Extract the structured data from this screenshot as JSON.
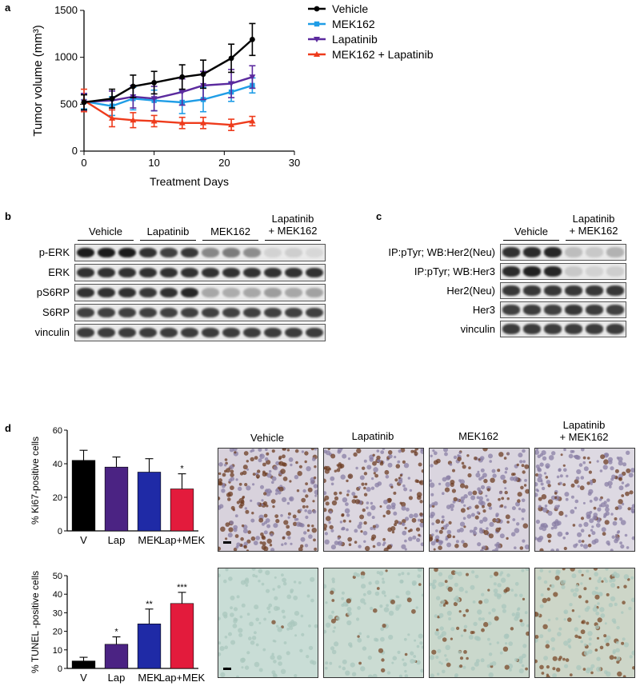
{
  "panels": {
    "a": {
      "label": "a",
      "chart_data": {
        "type": "line",
        "xlabel": "Treatment Days",
        "ylabel": "Tumor  volume (mm³)",
        "xlim": [
          0,
          30
        ],
        "ylim": [
          0,
          1500
        ],
        "xticks": [
          0,
          10,
          20,
          30
        ],
        "yticks": [
          0,
          500,
          1000,
          1500
        ],
        "legend_position": "top-right",
        "series": [
          {
            "name": "Vehicle",
            "color": "#000000",
            "marker": "circle",
            "x": [
              0,
              4,
              7,
              10,
              14,
              17,
              21,
              24
            ],
            "y": [
              520,
              560,
              690,
              730,
              790,
              820,
              990,
              1190
            ],
            "err": [
              80,
              100,
              120,
              120,
              130,
              150,
              150,
              170
            ]
          },
          {
            "name": "MEK162",
            "color": "#1f9de6",
            "marker": "square",
            "x": [
              0,
              4,
              7,
              10,
              14,
              17,
              21,
              24
            ],
            "y": [
              530,
              480,
              560,
              540,
              520,
              550,
              630,
              700
            ],
            "err": [
              80,
              100,
              120,
              110,
              120,
              130,
              100,
              80
            ]
          },
          {
            "name": "Lapatinib",
            "color": "#5b2a9e",
            "marker": "triangle-down",
            "x": [
              0,
              4,
              7,
              10,
              14,
              17,
              21,
              24
            ],
            "y": [
              525,
              540,
              580,
              560,
              630,
              700,
              720,
              790
            ],
            "err": [
              90,
              100,
              120,
              130,
              140,
              150,
              150,
              120
            ]
          },
          {
            "name": "MEK162 + Lapatinib",
            "color": "#ee3b1c",
            "marker": "triangle-up",
            "x": [
              0,
              4,
              7,
              10,
              14,
              17,
              21,
              24
            ],
            "y": [
              540,
              350,
              330,
              320,
              300,
              300,
              280,
              320
            ],
            "err": [
              120,
              90,
              80,
              60,
              60,
              60,
              60,
              50
            ]
          }
        ]
      }
    },
    "b": {
      "label": "b",
      "groups": [
        "Vehicle",
        "Lapatinib",
        "MEK162",
        "Lapatinib\n+ MEK162"
      ],
      "rows": [
        {
          "name": "p-ERK",
          "intensity": [
            0.95,
            0.95,
            0.95,
            0.85,
            0.78,
            0.82,
            0.45,
            0.5,
            0.42,
            0.1,
            0.12,
            0.08
          ]
        },
        {
          "name": "ERK",
          "intensity": [
            0.85,
            0.85,
            0.85,
            0.85,
            0.85,
            0.85,
            0.85,
            0.85,
            0.85,
            0.85,
            0.85,
            0.85
          ]
        },
        {
          "name": "pS6RP",
          "intensity": [
            0.85,
            0.85,
            0.85,
            0.82,
            0.85,
            0.9,
            0.3,
            0.28,
            0.3,
            0.35,
            0.3,
            0.32
          ]
        },
        {
          "name": "S6RP",
          "intensity": [
            0.78,
            0.78,
            0.78,
            0.78,
            0.78,
            0.78,
            0.78,
            0.78,
            0.78,
            0.78,
            0.78,
            0.78
          ]
        },
        {
          "name": "vinculin",
          "intensity": [
            0.8,
            0.8,
            0.8,
            0.8,
            0.8,
            0.8,
            0.8,
            0.8,
            0.8,
            0.8,
            0.8,
            0.8
          ]
        }
      ]
    },
    "c": {
      "label": "c",
      "groups": [
        "Vehicle",
        "Lapatinib\n+ MEK162"
      ],
      "rows": [
        {
          "name": "IP:pTyr; WB:Her2(Neu)",
          "intensity": [
            0.85,
            0.88,
            0.9,
            0.2,
            0.15,
            0.25
          ]
        },
        {
          "name": "IP:pTyr; WB:Her3",
          "intensity": [
            0.88,
            0.92,
            0.9,
            0.15,
            0.1,
            0.12
          ]
        },
        {
          "name": "Her2(Neu)",
          "intensity": [
            0.82,
            0.82,
            0.82,
            0.82,
            0.82,
            0.82
          ]
        },
        {
          "name": "Her3",
          "intensity": [
            0.78,
            0.8,
            0.78,
            0.82,
            0.8,
            0.78
          ]
        },
        {
          "name": "vinculin",
          "intensity": [
            0.8,
            0.8,
            0.8,
            0.8,
            0.8,
            0.8
          ]
        }
      ]
    },
    "d": {
      "label": "d",
      "ki67_chart": {
        "type": "bar",
        "ylabel": "% Ki67-positive cells",
        "categories": [
          "V",
          "Lap",
          "MEK",
          "Lap+MEK"
        ],
        "values": [
          42,
          38,
          35,
          25
        ],
        "err": [
          6,
          6,
          8,
          9
        ],
        "sig": [
          "",
          "",
          "",
          "*"
        ],
        "colors": [
          "#000000",
          "#4b2383",
          "#1f2aa6",
          "#e31b3c"
        ],
        "ylim": [
          0,
          60
        ],
        "yticks": [
          0,
          20,
          40,
          60
        ]
      },
      "tunel_chart": {
        "type": "bar",
        "ylabel": "% TUNEL -positive cells",
        "categories": [
          "V",
          "Lap",
          "MEK",
          "Lap+MEK"
        ],
        "values": [
          4,
          13,
          24,
          35
        ],
        "err": [
          2,
          4,
          8,
          6
        ],
        "sig": [
          "",
          "*",
          "**",
          "***"
        ],
        "colors": [
          "#000000",
          "#4b2383",
          "#1f2aa6",
          "#e31b3c"
        ],
        "ylim": [
          0,
          50
        ],
        "yticks": [
          0,
          10,
          20,
          30,
          40,
          50
        ]
      },
      "ihc_headers": [
        "Vehicle",
        "Lapatinib",
        "MEK162",
        "Lapatinib\n+ MEK162"
      ]
    }
  }
}
